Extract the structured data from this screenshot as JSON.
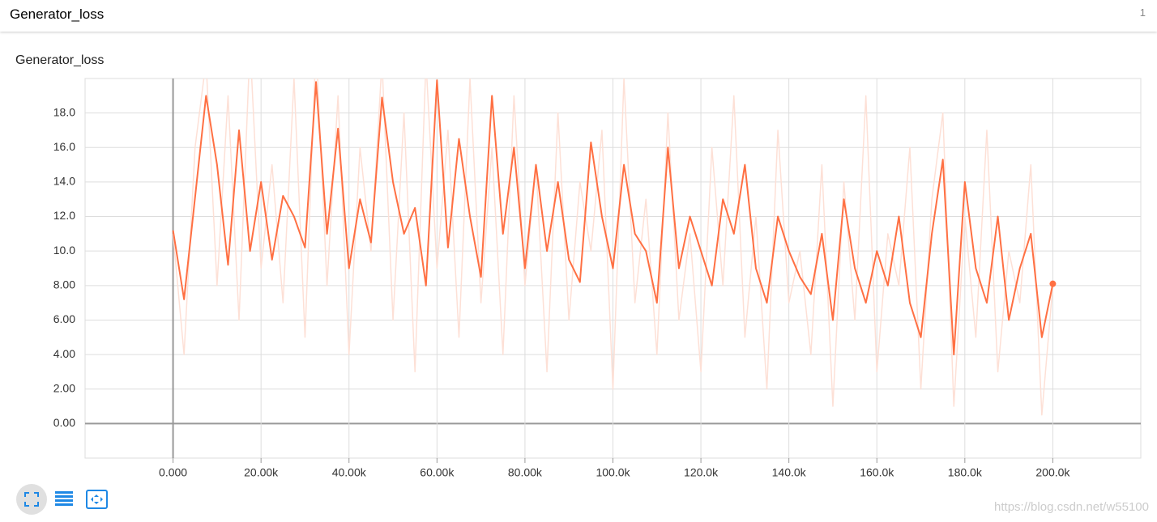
{
  "header": {
    "title": "Generator_loss",
    "count": "1"
  },
  "watermark": "https://blog.csdn.net/w55100",
  "chart_data": {
    "type": "line",
    "title": "Generator_loss",
    "x": [
      0,
      2500,
      5000,
      7500,
      10000,
      12500,
      15000,
      17500,
      20000,
      22500,
      25000,
      27500,
      30000,
      32500,
      35000,
      37500,
      40000,
      42500,
      45000,
      47500,
      50000,
      52500,
      55000,
      57500,
      60000,
      62500,
      65000,
      67500,
      70000,
      72500,
      75000,
      77500,
      80000,
      82500,
      85000,
      87500,
      90000,
      92500,
      95000,
      97500,
      100000,
      102500,
      105000,
      107500,
      110000,
      112500,
      115000,
      117500,
      120000,
      122500,
      125000,
      127500,
      130000,
      132500,
      135000,
      137500,
      140000,
      142500,
      145000,
      147500,
      150000,
      152500,
      155000,
      157500,
      160000,
      162500,
      165000,
      167500,
      170000,
      172500,
      175000,
      177500,
      180000,
      182500,
      185000,
      187500,
      190000,
      192500,
      195000,
      197500,
      200000
    ],
    "series": [
      {
        "color": "#fde0d6",
        "values": [
          11,
          4,
          16,
          21,
          8,
          19,
          6,
          22,
          9,
          15,
          7,
          20,
          5,
          22,
          8,
          19,
          4,
          16,
          10,
          21,
          6,
          18,
          3,
          21,
          9,
          17,
          5,
          20,
          7,
          16,
          4,
          19,
          8,
          15,
          3,
          18,
          6,
          14,
          10,
          17,
          2,
          20,
          7,
          13,
          4,
          18,
          6,
          11,
          3,
          16,
          8,
          19,
          5,
          12,
          2,
          17,
          7,
          10,
          4,
          15,
          1,
          14,
          6,
          19,
          3,
          11,
          8,
          16,
          2,
          13,
          18,
          1,
          12,
          5,
          17,
          3,
          10,
          7,
          15,
          0.5,
          8
        ]
      },
      {
        "color": "#ff7043",
        "values": [
          11.2,
          7.2,
          13.1,
          19.0,
          15.0,
          9.2,
          17.0,
          10.0,
          14.0,
          9.5,
          13.2,
          12.0,
          10.2,
          19.8,
          11.0,
          17.1,
          9.0,
          13.0,
          10.5,
          18.9,
          14.0,
          11.0,
          12.5,
          8.0,
          19.9,
          10.2,
          16.5,
          12.0,
          8.5,
          19.0,
          11.0,
          16.0,
          9.0,
          15.0,
          10.0,
          14.0,
          9.5,
          8.2,
          16.3,
          12.0,
          9.0,
          15.0,
          11.0,
          10.0,
          7.0,
          16.0,
          9.0,
          12.0,
          10.0,
          8.0,
          13.0,
          11.0,
          15.0,
          9.0,
          7.0,
          12.0,
          10.0,
          8.5,
          7.5,
          11.0,
          6.0,
          13.0,
          9.0,
          7.0,
          10.0,
          8.0,
          12.0,
          7.0,
          5.0,
          11.0,
          15.3,
          4.0,
          14.0,
          9.0,
          7.0,
          12.0,
          6.0,
          9.0,
          11.0,
          5.0,
          8.1
        ]
      }
    ],
    "xlim": [
      -20000,
      220000
    ],
    "ylim": [
      -2,
      20
    ],
    "xticks": [
      {
        "value": 0,
        "label": "0.000"
      },
      {
        "value": 20000,
        "label": "20.00k"
      },
      {
        "value": 40000,
        "label": "40.00k"
      },
      {
        "value": 60000,
        "label": "60.00k"
      },
      {
        "value": 80000,
        "label": "80.00k"
      },
      {
        "value": 100000,
        "label": "100.0k"
      },
      {
        "value": 120000,
        "label": "120.0k"
      },
      {
        "value": 140000,
        "label": "140.0k"
      },
      {
        "value": 160000,
        "label": "160.0k"
      },
      {
        "value": 180000,
        "label": "180.0k"
      },
      {
        "value": 200000,
        "label": "200.0k"
      }
    ],
    "yticks": [
      {
        "value": 0,
        "label": "0.00"
      },
      {
        "value": 2,
        "label": "2.00"
      },
      {
        "value": 4,
        "label": "4.00"
      },
      {
        "value": 6,
        "label": "6.00"
      },
      {
        "value": 8,
        "label": "8.00"
      },
      {
        "value": 10,
        "label": "10.0"
      },
      {
        "value": 12,
        "label": "12.0"
      },
      {
        "value": 14,
        "label": "14.0"
      },
      {
        "value": 16,
        "label": "16.0"
      },
      {
        "value": 18,
        "label": "18.0"
      }
    ],
    "grid": true
  }
}
